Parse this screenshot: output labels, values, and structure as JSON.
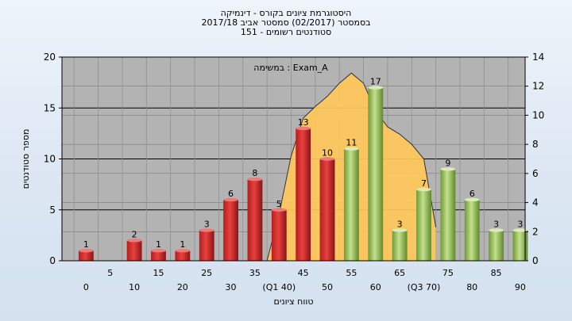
{
  "title_lines": [
    "היסטוגרמת ציונים בקורס - דינמיקה",
    "בסמסטר  (02/2017)  סמסטר אביב 2017/18",
    "סטודנטים רשומים - 151"
  ],
  "chart_data": {
    "type": "bar",
    "xlabel": "טווח ציונים",
    "ylabel": "מספר סטודנטים",
    "ylim": [
      0,
      20
    ],
    "y_ticks": [
      0,
      5,
      10,
      15,
      20
    ],
    "y2lim": [
      0,
      14
    ],
    "y2_ticks": [
      0,
      2,
      4,
      6,
      8,
      10,
      12,
      14
    ],
    "grid": true,
    "annotation": "במשימה : Exam_A",
    "categories": [
      "0",
      "5",
      "10",
      "15",
      "20",
      "25",
      "30",
      "35",
      "40",
      "45",
      "50",
      "55",
      "60",
      "65",
      "70",
      "75",
      "80",
      "85",
      "90"
    ],
    "x_tick_labels": [
      "0",
      "5",
      "10",
      "15",
      "20",
      "25",
      "30",
      "35",
      "(Q1 40)",
      "45",
      "50",
      "55",
      "60",
      "65",
      "(Q3 70)",
      "75",
      "80",
      "85",
      "90"
    ],
    "values": [
      1,
      0,
      2,
      1,
      1,
      3,
      6,
      8,
      5,
      13,
      10,
      11,
      17,
      3,
      7,
      9,
      6,
      3,
      3
    ],
    "value_labels": [
      "1",
      "",
      "2",
      "1",
      "1",
      "3",
      "6",
      "8",
      "5",
      "13",
      "10",
      "11",
      "17",
      "3",
      "7",
      "9",
      "6",
      "3",
      "3"
    ],
    "bar_colors": [
      "red",
      "red",
      "red",
      "red",
      "red",
      "red",
      "red",
      "red",
      "red",
      "red",
      "red",
      "green",
      "green",
      "green",
      "green",
      "green",
      "green",
      "green",
      "green"
    ],
    "colors": {
      "red_bar": "#e8413f",
      "green_bar": "#9cc65a",
      "curve_fill": "#ffc85a",
      "plot_bg": "#b3b3b3"
    },
    "curve": {
      "x": [
        37.5,
        40,
        42.5,
        45,
        47.5,
        50,
        52.5,
        55,
        57.5,
        60,
        62.5,
        65,
        67.5,
        70,
        72.5
      ],
      "y": [
        0,
        3.2,
        7.2,
        9.8,
        10.6,
        11.3,
        12.2,
        12.9,
        12.2,
        10.3,
        9.2,
        8.7,
        8.0,
        7.0,
        2.3
      ]
    }
  }
}
